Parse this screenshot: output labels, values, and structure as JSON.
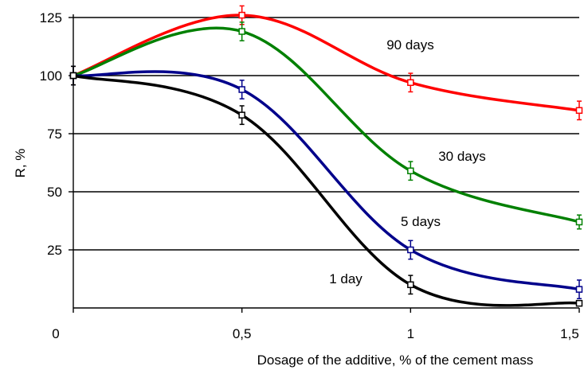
{
  "chart_data": {
    "type": "line",
    "title": "",
    "xlabel": "Dosage of the additive, % of the cement mass",
    "ylabel": "R, %",
    "xlim": [
      0,
      1.5
    ],
    "ylim": [
      0,
      125
    ],
    "x_ticks": [
      {
        "value": 0,
        "label": "0"
      },
      {
        "value": 0.5,
        "label": "0,5"
      },
      {
        "value": 1,
        "label": "1"
      },
      {
        "value": 1.5,
        "label": "1,5"
      }
    ],
    "y_ticks": [
      {
        "value": 25,
        "label": "25"
      },
      {
        "value": 50,
        "label": "50"
      },
      {
        "value": 75,
        "label": "75"
      },
      {
        "value": 100,
        "label": "100"
      },
      {
        "value": 125,
        "label": "125"
      }
    ],
    "grid": "horizontal",
    "error_bars": true,
    "series": [
      {
        "name": "90 days",
        "color": "#ff0000",
        "x": [
          0,
          0.5,
          1,
          1.5
        ],
        "values": [
          100,
          126,
          97,
          85
        ],
        "errors": [
          4,
          4,
          4,
          4
        ]
      },
      {
        "name": "30 days",
        "color": "#008000",
        "x": [
          0,
          0.5,
          1,
          1.5
        ],
        "values": [
          100,
          119,
          59,
          37
        ],
        "errors": [
          4,
          4,
          4,
          3
        ]
      },
      {
        "name": "5 days",
        "color": "#00008b",
        "x": [
          0,
          0.5,
          1,
          1.5
        ],
        "values": [
          100,
          94,
          25,
          8
        ],
        "errors": [
          4,
          4,
          4,
          4
        ]
      },
      {
        "name": "1 day",
        "color": "#000000",
        "x": [
          0,
          0.5,
          1,
          1.5
        ],
        "values": [
          100,
          83,
          10,
          2
        ],
        "errors": [
          4,
          4,
          4,
          1
        ]
      }
    ]
  }
}
